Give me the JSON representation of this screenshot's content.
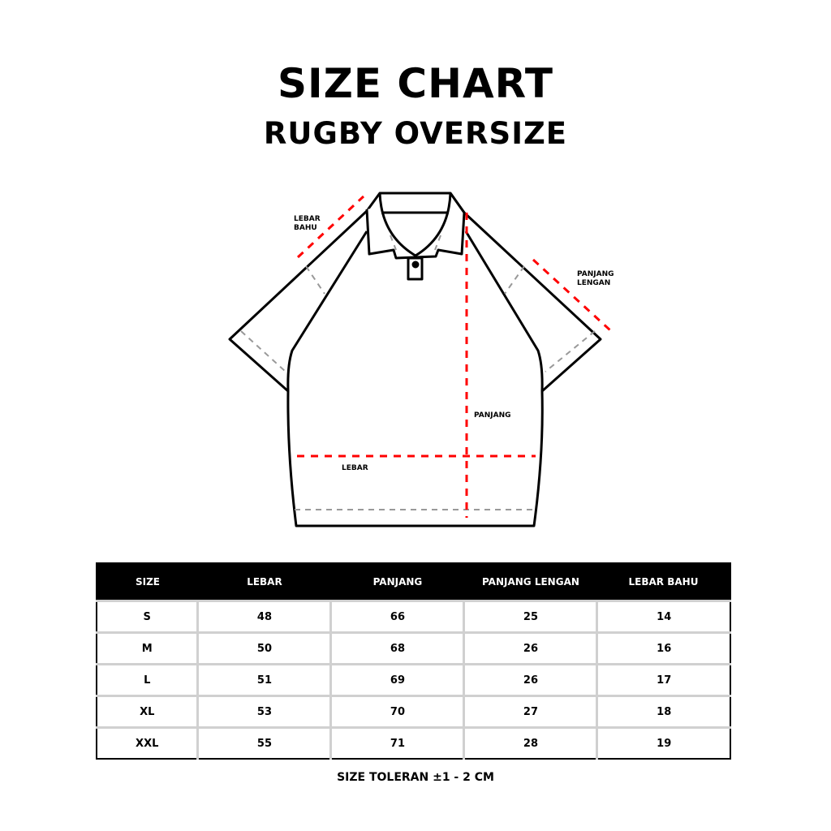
{
  "title": "SIZE CHART",
  "subtitle": "RUGBY OVERSIZE",
  "diagram": {
    "labels": {
      "lebar_bahu": "LEBAR BAHU",
      "panjang_lengan": "PANJANG LENGAN",
      "panjang": "PANJANG",
      "lebar": "LEBAR"
    },
    "colors": {
      "measure_line": "#ff0000",
      "guide_line": "#999999",
      "outline": "#000000"
    }
  },
  "table": {
    "headers": [
      "SIZE",
      "LEBAR",
      "PANJANG",
      "PANJANG LENGAN",
      "LEBAR BAHU"
    ],
    "rows": [
      [
        "S",
        "48",
        "66",
        "25",
        "14"
      ],
      [
        "M",
        "50",
        "68",
        "26",
        "16"
      ],
      [
        "L",
        "51",
        "69",
        "26",
        "17"
      ],
      [
        "XL",
        "53",
        "70",
        "27",
        "18"
      ],
      [
        "XXL",
        "55",
        "71",
        "28",
        "19"
      ]
    ]
  },
  "note": "SIZE TOLERAN  ±1 - 2 CM"
}
